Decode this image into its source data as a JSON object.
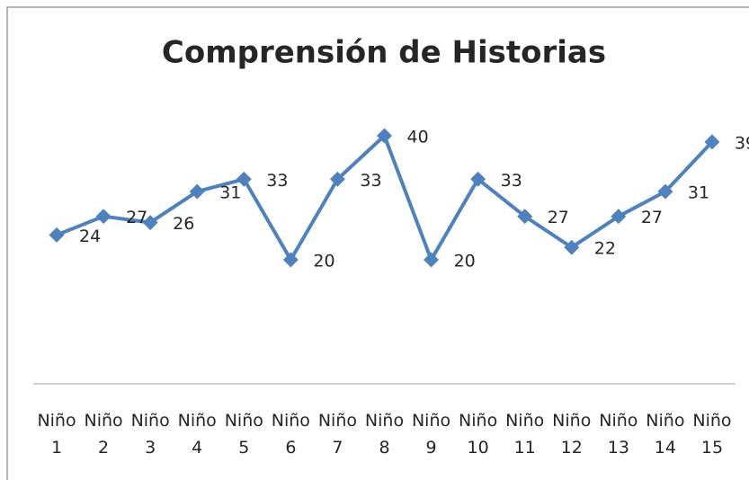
{
  "chart_data": {
    "type": "line",
    "title": "Comprensión de Historias",
    "categories": [
      "Niño 1",
      "Niño 2",
      "Niño 3",
      "Niño 4",
      "Niño 5",
      "Niño 6",
      "Niño 7",
      "Niño 8",
      "Niño 9",
      "Niño 10",
      "Niño 11",
      "Niño 12",
      "Niño 13",
      "Niño 14",
      "Niño 15"
    ],
    "values": [
      24,
      27,
      26,
      31,
      33,
      20,
      33,
      40,
      20,
      33,
      27,
      22,
      27,
      31,
      39
    ],
    "color": "#4f81bd",
    "ylim": [
      0,
      50
    ],
    "data_labels": true
  }
}
